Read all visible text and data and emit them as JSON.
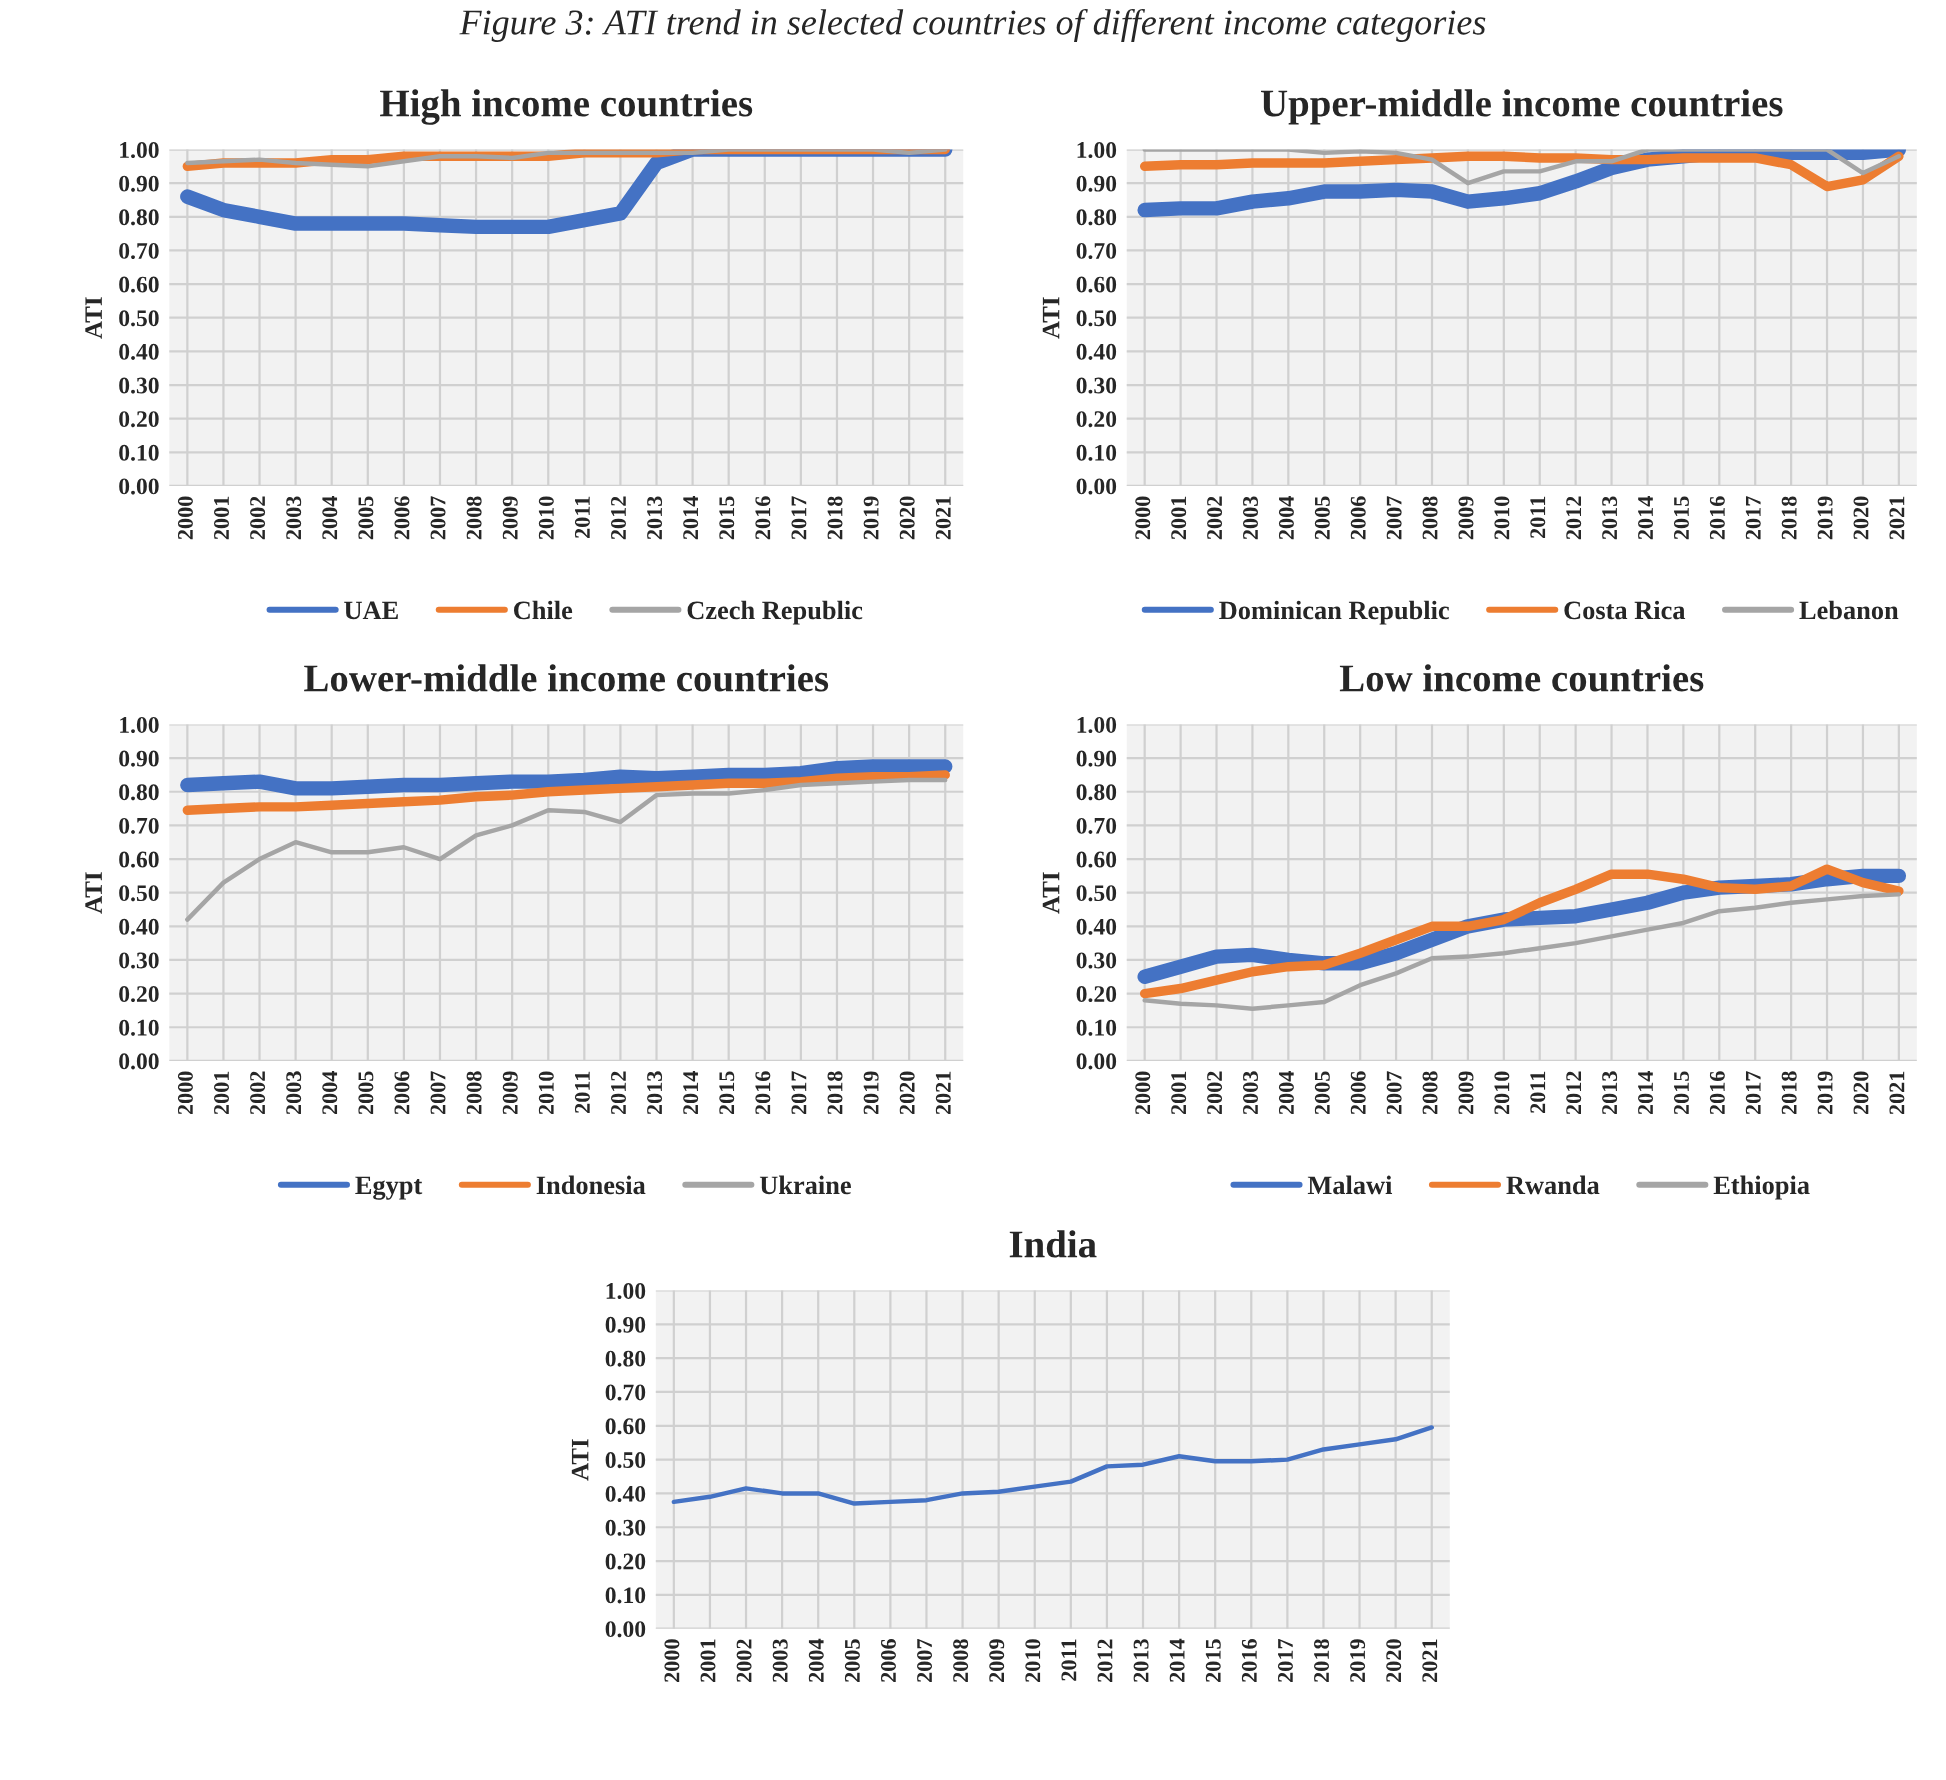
{
  "chart_data": [
    {
      "type": "line",
      "title": "High income countries",
      "ylabel": "ATI",
      "annotations": [
        "Figure 3: ATI trend in selected countries of different income categories"
      ],
      "categories": [
        "2000",
        "2001",
        "2002",
        "2003",
        "2004",
        "2005",
        "2006",
        "2007",
        "2008",
        "2009",
        "2010",
        "2011",
        "2012",
        "2013",
        "2014",
        "2015",
        "2016",
        "2017",
        "2018",
        "2019",
        "2020",
        "2021"
      ],
      "series": [
        {
          "name": "UAE",
          "color": "#4472c4",
          "values": [
            0.86,
            0.82,
            0.8,
            0.78,
            0.78,
            0.78,
            0.78,
            0.775,
            0.77,
            0.77,
            0.77,
            0.79,
            0.81,
            0.96,
            1.0,
            1.0,
            1.0,
            1.0,
            1.0,
            1.0,
            1.0,
            1.0
          ]
        },
        {
          "name": "Chile",
          "color": "#ed7d31",
          "values": [
            0.95,
            0.96,
            0.96,
            0.96,
            0.97,
            0.97,
            0.98,
            0.98,
            0.98,
            0.98,
            0.98,
            0.99,
            0.99,
            0.99,
            1.0,
            1.0,
            1.0,
            1.0,
            1.0,
            1.0,
            1.0,
            1.0
          ]
        },
        {
          "name": "Czech Republic",
          "color": "#a5a5a5",
          "values": [
            0.96,
            0.965,
            0.97,
            0.96,
            0.955,
            0.95,
            0.965,
            0.98,
            0.98,
            0.975,
            0.99,
            0.99,
            0.99,
            0.99,
            0.99,
            1.0,
            1.0,
            1.0,
            1.0,
            1.0,
            0.99,
            1.0
          ]
        }
      ],
      "ylim": [
        0,
        1
      ],
      "yticks": [
        {
          "value": 0,
          "label": "0.00"
        },
        {
          "value": 0.1,
          "label": "0.10"
        },
        {
          "value": 0.2,
          "label": "0.20"
        },
        {
          "value": 0.3,
          "label": "0.30"
        },
        {
          "value": 0.4,
          "label": "0.40"
        },
        {
          "value": 0.5,
          "label": "0.50"
        },
        {
          "value": 0.6,
          "label": "0.60"
        },
        {
          "value": 0.7,
          "label": "0.70"
        },
        {
          "value": 0.8,
          "label": "0.80"
        },
        {
          "value": 0.9,
          "label": "0.90"
        },
        {
          "value": 1,
          "label": "1.00"
        }
      ],
      "grid": true,
      "legend": "bottom"
    },
    {
      "type": "line",
      "title": "Upper-middle income countries",
      "ylabel": "ATI",
      "categories": [
        "2000",
        "2001",
        "2002",
        "2003",
        "2004",
        "2005",
        "2006",
        "2007",
        "2008",
        "2009",
        "2010",
        "2011",
        "2012",
        "2013",
        "2014",
        "2015",
        "2016",
        "2017",
        "2018",
        "2019",
        "2020",
        "2021"
      ],
      "series": [
        {
          "name": "Dominican Republic",
          "color": "#4472c4",
          "values": [
            0.82,
            0.825,
            0.825,
            0.845,
            0.855,
            0.875,
            0.875,
            0.88,
            0.875,
            0.845,
            0.855,
            0.87,
            0.905,
            0.945,
            0.97,
            0.98,
            0.99,
            0.99,
            0.99,
            0.99,
            0.99,
            1.0
          ]
        },
        {
          "name": "Costa Rica",
          "color": "#ed7d31",
          "values": [
            0.95,
            0.955,
            0.955,
            0.96,
            0.96,
            0.96,
            0.965,
            0.97,
            0.975,
            0.98,
            0.98,
            0.975,
            0.975,
            0.97,
            0.97,
            0.975,
            0.975,
            0.975,
            0.955,
            0.89,
            0.91,
            0.98
          ]
        },
        {
          "name": "Lebanon",
          "color": "#a5a5a5",
          "values": [
            1.0,
            1.0,
            1.0,
            1.0,
            1.0,
            0.99,
            0.995,
            0.99,
            0.97,
            0.9,
            0.935,
            0.935,
            0.965,
            0.965,
            1.0,
            1.0,
            1.0,
            1.0,
            1.0,
            1.0,
            0.93,
            0.98
          ]
        }
      ],
      "ylim": [
        0,
        1
      ],
      "yticks": [
        {
          "value": 0,
          "label": "0.00"
        },
        {
          "value": 0.1,
          "label": "0.10"
        },
        {
          "value": 0.2,
          "label": "0.20"
        },
        {
          "value": 0.3,
          "label": "0.30"
        },
        {
          "value": 0.4,
          "label": "0.40"
        },
        {
          "value": 0.5,
          "label": "0.50"
        },
        {
          "value": 0.6,
          "label": "0.60"
        },
        {
          "value": 0.7,
          "label": "0.70"
        },
        {
          "value": 0.8,
          "label": "0.80"
        },
        {
          "value": 0.9,
          "label": "0.90"
        },
        {
          "value": 1,
          "label": "1.00"
        }
      ],
      "grid": true,
      "legend": "bottom"
    },
    {
      "type": "line",
      "title": "Lower-middle income countries",
      "ylabel": "ATI",
      "categories": [
        "2000",
        "2001",
        "2002",
        "2003",
        "2004",
        "2005",
        "2006",
        "2007",
        "2008",
        "2009",
        "2010",
        "2011",
        "2012",
        "2013",
        "2014",
        "2015",
        "2016",
        "2017",
        "2018",
        "2019",
        "2020",
        "2021"
      ],
      "series": [
        {
          "name": "Egypt",
          "color": "#4472c4",
          "values": [
            0.82,
            0.825,
            0.83,
            0.81,
            0.81,
            0.815,
            0.82,
            0.82,
            0.825,
            0.83,
            0.83,
            0.835,
            0.845,
            0.84,
            0.845,
            0.85,
            0.85,
            0.855,
            0.87,
            0.875,
            0.875,
            0.875
          ]
        },
        {
          "name": "Indonesia",
          "color": "#ed7d31",
          "values": [
            0.745,
            0.75,
            0.755,
            0.755,
            0.76,
            0.765,
            0.77,
            0.775,
            0.785,
            0.79,
            0.8,
            0.805,
            0.81,
            0.815,
            0.82,
            0.825,
            0.825,
            0.83,
            0.84,
            0.845,
            0.845,
            0.85
          ]
        },
        {
          "name": "Ukraine",
          "color": "#a5a5a5",
          "values": [
            0.42,
            0.53,
            0.6,
            0.65,
            0.62,
            0.62,
            0.635,
            0.6,
            0.67,
            0.7,
            0.745,
            0.74,
            0.71,
            0.79,
            0.795,
            0.795,
            0.805,
            0.82,
            0.825,
            0.83,
            0.835,
            0.835
          ]
        }
      ],
      "ylim": [
        0,
        1
      ],
      "yticks": [
        {
          "value": 0,
          "label": "0.00"
        },
        {
          "value": 0.1,
          "label": "0.10"
        },
        {
          "value": 0.2,
          "label": "0.20"
        },
        {
          "value": 0.3,
          "label": "0.30"
        },
        {
          "value": 0.4,
          "label": "0.40"
        },
        {
          "value": 0.5,
          "label": "0.50"
        },
        {
          "value": 0.6,
          "label": "0.60"
        },
        {
          "value": 0.7,
          "label": "0.70"
        },
        {
          "value": 0.8,
          "label": "0.80"
        },
        {
          "value": 0.9,
          "label": "0.90"
        },
        {
          "value": 1,
          "label": "1.00"
        }
      ],
      "grid": true,
      "legend": "bottom"
    },
    {
      "type": "line",
      "title": "Low income countries",
      "ylabel": "ATI",
      "categories": [
        "2000",
        "2001",
        "2002",
        "2003",
        "2004",
        "2005",
        "2006",
        "2007",
        "2008",
        "2009",
        "2010",
        "2011",
        "2012",
        "2013",
        "2014",
        "2015",
        "2016",
        "2017",
        "2018",
        "2019",
        "2020",
        "2021"
      ],
      "series": [
        {
          "name": "Malawi",
          "color": "#4472c4",
          "values": [
            0.25,
            0.28,
            0.31,
            0.315,
            0.3,
            0.29,
            0.29,
            0.32,
            0.36,
            0.4,
            0.42,
            0.425,
            0.43,
            0.45,
            0.47,
            0.5,
            0.515,
            0.52,
            0.525,
            0.54,
            0.55,
            0.55
          ]
        },
        {
          "name": "Rwanda",
          "color": "#ed7d31",
          "values": [
            0.2,
            0.215,
            0.24,
            0.265,
            0.28,
            0.285,
            0.32,
            0.36,
            0.4,
            0.4,
            0.42,
            0.47,
            0.51,
            0.555,
            0.555,
            0.54,
            0.515,
            0.51,
            0.52,
            0.57,
            0.53,
            0.505
          ]
        },
        {
          "name": "Ethiopia",
          "color": "#a5a5a5",
          "values": [
            0.18,
            0.17,
            0.165,
            0.155,
            0.165,
            0.175,
            0.225,
            0.26,
            0.305,
            0.31,
            0.32,
            0.335,
            0.35,
            0.37,
            0.39,
            0.41,
            0.445,
            0.455,
            0.47,
            0.48,
            0.49,
            0.495
          ]
        }
      ],
      "ylim": [
        0,
        1
      ],
      "yticks": [
        {
          "value": 0,
          "label": "0.00"
        },
        {
          "value": 0.1,
          "label": "0.10"
        },
        {
          "value": 0.2,
          "label": "0.20"
        },
        {
          "value": 0.3,
          "label": "0.30"
        },
        {
          "value": 0.4,
          "label": "0.40"
        },
        {
          "value": 0.5,
          "label": "0.50"
        },
        {
          "value": 0.6,
          "label": "0.60"
        },
        {
          "value": 0.7,
          "label": "0.70"
        },
        {
          "value": 0.8,
          "label": "0.80"
        },
        {
          "value": 0.9,
          "label": "0.90"
        },
        {
          "value": 1,
          "label": "1.00"
        }
      ],
      "grid": true,
      "legend": "bottom"
    },
    {
      "type": "line",
      "title": "India",
      "ylabel": "ATI",
      "categories": [
        "2000",
        "2001",
        "2002",
        "2003",
        "2004",
        "2005",
        "2006",
        "2007",
        "2008",
        "2009",
        "2010",
        "2011",
        "2012",
        "2013",
        "2014",
        "2015",
        "2016",
        "2017",
        "2018",
        "2019",
        "2020",
        "2021"
      ],
      "series": [
        {
          "color": "#4472c4",
          "values": [
            0.375,
            0.39,
            0.415,
            0.4,
            0.4,
            0.37,
            0.375,
            0.38,
            0.4,
            0.405,
            0.42,
            0.435,
            0.48,
            0.485,
            0.51,
            0.495,
            0.495,
            0.5,
            0.53,
            0.545,
            0.56,
            0.595
          ]
        }
      ],
      "ylim": [
        0,
        1
      ],
      "yticks": [
        {
          "value": 0,
          "label": "0.00"
        },
        {
          "value": 0.1,
          "label": "0.10"
        },
        {
          "value": 0.2,
          "label": "0.20"
        },
        {
          "value": 0.3,
          "label": "0.30"
        },
        {
          "value": 0.4,
          "label": "0.40"
        },
        {
          "value": 0.5,
          "label": "0.50"
        },
        {
          "value": 0.6,
          "label": "0.60"
        },
        {
          "value": 0.7,
          "label": "0.70"
        },
        {
          "value": 0.8,
          "label": "0.80"
        },
        {
          "value": 0.9,
          "label": "0.90"
        },
        {
          "value": 1,
          "label": "1.00"
        }
      ],
      "grid": true
    }
  ]
}
